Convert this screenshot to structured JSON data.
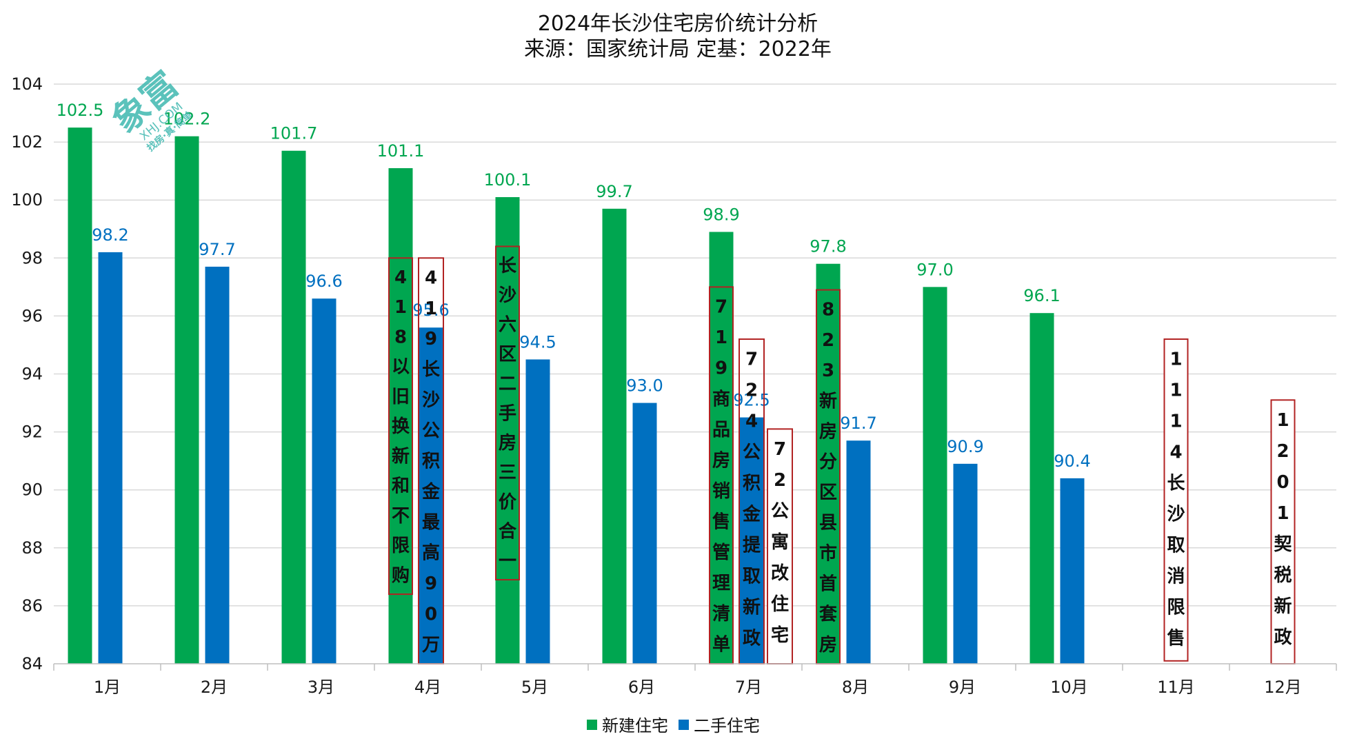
{
  "chart_data": {
    "type": "bar",
    "title": "2024年长沙住宅房价统计分析",
    "subtitle": "来源：国家统计局 定基：2022年",
    "categories": [
      "1月",
      "2月",
      "3月",
      "4月",
      "5月",
      "6月",
      "7月",
      "8月",
      "9月",
      "10月",
      "11月",
      "12月"
    ],
    "series": [
      {
        "name": "新建住宅",
        "color": "#00a650",
        "label_color": "#00a650",
        "values": [
          102.5,
          102.2,
          101.7,
          101.1,
          100.1,
          99.7,
          98.9,
          97.8,
          97.0,
          96.1,
          null,
          null
        ],
        "labels": [
          "102.5",
          "102.2",
          "101.7",
          "101.1",
          "100.1",
          "99.7",
          "98.9",
          "97.8",
          "97.0",
          "96.1",
          "",
          ""
        ]
      },
      {
        "name": "二手住宅",
        "color": "#0070c0",
        "label_color": "#0070c0",
        "values": [
          98.2,
          97.7,
          96.6,
          95.6,
          94.5,
          93.0,
          92.5,
          91.7,
          90.9,
          90.4,
          null,
          null
        ],
        "labels": [
          "98.2",
          "97.7",
          "96.6",
          "95.6",
          "94.5",
          "93.0",
          "92.5",
          "91.7",
          "90.9",
          "90.4",
          "",
          ""
        ]
      }
    ],
    "ylim": [
      84,
      104
    ],
    "yticks": [
      84,
      86,
      88,
      90,
      92,
      94,
      96,
      98,
      100,
      102,
      104
    ],
    "grid": true,
    "legend": "bottom-center",
    "policy_notes": [
      {
        "text": "418以旧换新和不限购",
        "month_index": 3,
        "anchor": "series0",
        "top": 98,
        "bottom": 86.4,
        "fill": "none"
      },
      {
        "text": "419长沙公积金最高90万",
        "month_index": 3,
        "anchor": "series1",
        "top": 98,
        "bottom": 84,
        "fill": "none"
      },
      {
        "text": "长沙六区二手房三价合一",
        "month_index": 4,
        "anchor": "series0",
        "top": 98.4,
        "bottom": 86.9,
        "fill": "none"
      },
      {
        "text": "719商品房销售管理清单",
        "month_index": 6,
        "anchor": "series0",
        "top": 97,
        "bottom": 84,
        "fill": "none"
      },
      {
        "text": "724公积金提取新政",
        "month_index": 6,
        "anchor": "series1",
        "top": 95.2,
        "bottom": 84,
        "fill": "none"
      },
      {
        "text": "72公寓改住宅",
        "month_index": 6,
        "anchor": "after",
        "top": 92.1,
        "bottom": 84,
        "fill": "#ffffff"
      },
      {
        "text": "823新房分区县市首套房",
        "month_index": 7,
        "anchor": "series0",
        "top": 96.9,
        "bottom": 84,
        "fill": "none"
      },
      {
        "text": "1114长沙取消限售",
        "month_index": 10,
        "anchor": "center",
        "top": 95.2,
        "bottom": 84.1,
        "fill": "#ffffff"
      },
      {
        "text": "1201契税新政",
        "month_index": 11,
        "anchor": "center",
        "top": 93.1,
        "bottom": 84,
        "fill": "#ffffff"
      }
    ]
  },
  "watermark": {
    "glyphs": "象富",
    "url": "XHJ.COM",
    "slogan": "找房·真·简单"
  }
}
